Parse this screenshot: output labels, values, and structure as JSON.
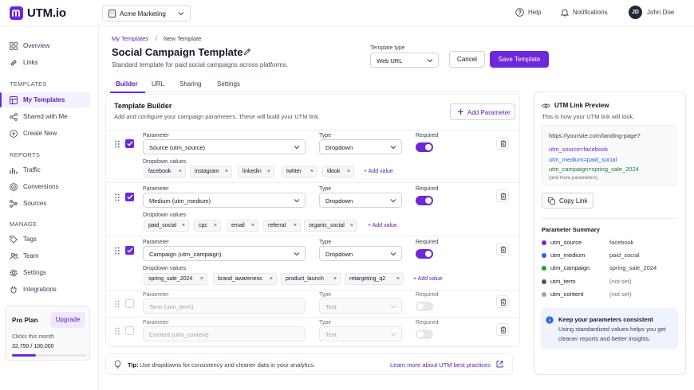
{
  "brand": {
    "logo_text": "UTM.io",
    "accent": "#6d28d9"
  },
  "topbar": {
    "workspace": "Acme Marketing",
    "help": "Help",
    "notifications": "Notifications",
    "user_initials": "JD",
    "user_name": "John Doe"
  },
  "sidebar": {
    "overview": "Overview",
    "links": "Links",
    "templates_heading": "TEMPLATES",
    "my_templates": "My Templates",
    "shared": "Shared with Me",
    "create_new": "Create New",
    "reports_heading": "REPORTS",
    "traffic": "Traffic",
    "conversions": "Conversions",
    "sources": "Sources",
    "manage_heading": "MANAGE",
    "tags": "Tags",
    "team": "Team",
    "settings": "Settings",
    "integrations": "Integrations",
    "plan": {
      "name": "Pro Plan",
      "upgrade": "Upgrade",
      "clicks_label": "Clicks this month",
      "clicks_value": "32,750 / 100,000",
      "usage_fraction": 0.3275
    }
  },
  "breadcrumb": {
    "parent": "My Templates",
    "separator": "/",
    "current": "New Template"
  },
  "page": {
    "title": "Social Campaign Template",
    "subtitle": "Standard template for paid social campaigns across platforms."
  },
  "template_type": {
    "label": "Template type",
    "value": "Web URL"
  },
  "actions": {
    "cancel": "Cancel",
    "save": "Save Template"
  },
  "tabs": [
    "Builder",
    "URL",
    "Sharing",
    "Settings"
  ],
  "builder": {
    "title": "Template Builder",
    "description": "Add and configure your campaign parameters. These will build your UTM link.",
    "add_parameter": "Add Parameter",
    "labels": {
      "parameter": "Parameter",
      "type": "Type",
      "required": "Required",
      "dropdown_values": "Dropdown values",
      "add_value": "+ Add value",
      "remove": "×"
    },
    "rows": [
      {
        "parameter": "Source (utm_source)",
        "type": "Dropdown",
        "enabled": true,
        "required": true,
        "values": [
          "facebook",
          "instagram",
          "linkedin",
          "twitter",
          "tiktok"
        ]
      },
      {
        "parameter": "Medium (utm_medium)",
        "type": "Dropdown",
        "enabled": true,
        "required": true,
        "values": [
          "paid_social",
          "cpc",
          "email",
          "referral",
          "organic_social"
        ]
      },
      {
        "parameter": "Campaign (utm_campaign)",
        "type": "Dropdown",
        "enabled": true,
        "required": true,
        "values": [
          "spring_sale_2024",
          "brand_awareness",
          "product_launch",
          "retargeting_q2"
        ]
      },
      {
        "parameter": "Term (utm_term)",
        "type": "Text",
        "enabled": false,
        "required": false,
        "values": []
      },
      {
        "parameter": "Content (utm_content)",
        "type": "Text",
        "enabled": false,
        "required": false,
        "values": []
      }
    ]
  },
  "tip": {
    "label": "Tip:",
    "text": "Use dropdowns for consistency and cleaner data in your analytics.",
    "link": "Learn more about UTM best practices"
  },
  "preview": {
    "title": "UTM Link Preview",
    "subtitle": "This is how your UTM link will look.",
    "base_url": "https://yoursite.com/landing-page?",
    "lines": [
      {
        "text": "utm_source=facebook",
        "color": "#6d28d9"
      },
      {
        "text": "utm_medium=paid_social",
        "color": "#2563eb"
      },
      {
        "text": "utm_campaign=spring_sale_2024",
        "color": "#15803d"
      }
    ],
    "more": "(and more parameters)",
    "copy": "Copy Link",
    "summary_title": "Parameter Summary",
    "summary": [
      {
        "key": "utm_source",
        "value": "facebook",
        "color": "#6d28d9"
      },
      {
        "key": "utm_medium",
        "value": "paid_social",
        "color": "#2563eb"
      },
      {
        "key": "utm_campaign",
        "value": "spring_sale_2024",
        "color": "#16a34a"
      },
      {
        "key": "utm_term",
        "value": "(not set)",
        "color": "#4b5563"
      },
      {
        "key": "utm_content",
        "value": "(not set)",
        "color": "#9ca3af"
      }
    ],
    "info_title": "Keep your parameters consistent",
    "info_text_1": "Using standardized values helps you get",
    "info_text_2": "cleaner reports and better insights."
  }
}
